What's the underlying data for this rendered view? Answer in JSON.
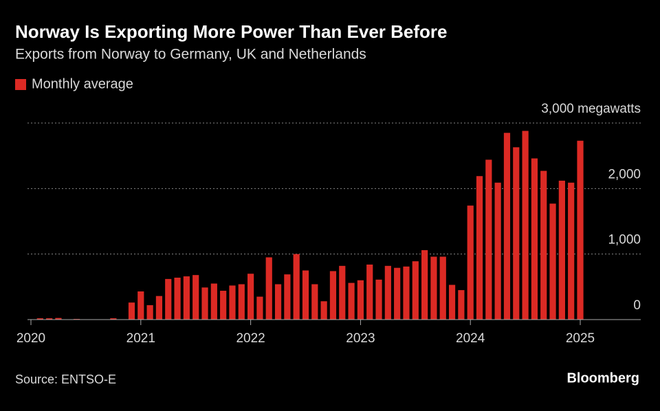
{
  "chart_data": {
    "type": "bar",
    "title": "Norway Is Exporting More Power Than Ever Before",
    "subtitle": "Exports from Norway to Germany, UK and Netherlands",
    "legend": "Monthly average",
    "source": "Source: ENTSO-E",
    "brand": "Bloomberg",
    "color": "#dc2a24",
    "categories": [
      "2020",
      null,
      null,
      null,
      null,
      null,
      null,
      null,
      null,
      null,
      null,
      null,
      "2021",
      null,
      null,
      null,
      null,
      null,
      null,
      null,
      null,
      null,
      null,
      null,
      "2022",
      null,
      null,
      null,
      null,
      null,
      null,
      null,
      null,
      null,
      null,
      null,
      "2023",
      null,
      null,
      null,
      null,
      null,
      null,
      null,
      null,
      null,
      null,
      null,
      "2024",
      null,
      null,
      null,
      null,
      null,
      null,
      null,
      null,
      null,
      null,
      null,
      "2025"
    ],
    "values": [
      5,
      20,
      20,
      25,
      5,
      10,
      5,
      5,
      0,
      20,
      5,
      260,
      430,
      220,
      360,
      620,
      640,
      660,
      680,
      490,
      550,
      440,
      520,
      540,
      700,
      350,
      950,
      540,
      690,
      1000,
      750,
      540,
      280,
      740,
      820,
      560,
      600,
      840,
      610,
      820,
      790,
      810,
      890,
      1060,
      960,
      960,
      530,
      450,
      1740,
      2190,
      2440,
      2090,
      2850,
      2630,
      2880,
      2460,
      2270,
      1770,
      2120,
      2090,
      2730
    ],
    "ylim": [
      0,
      3000
    ],
    "yticks": [
      0,
      {
        "value": 1000,
        "label": "1,000"
      },
      {
        "value": 2000,
        "label": "2,000"
      },
      {
        "value": 3000,
        "label": "3,000 megawatts"
      }
    ],
    "grid": true
  }
}
